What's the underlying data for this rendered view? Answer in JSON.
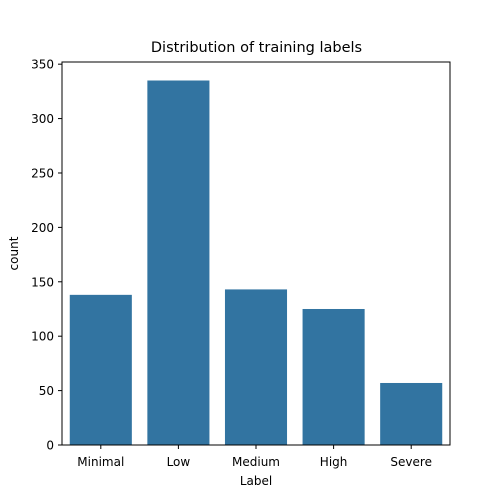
{
  "chart_data": {
    "type": "bar",
    "title": "Distribution of training labels",
    "xlabel": "Label",
    "ylabel": "count",
    "categories": [
      "Minimal",
      "Low",
      "Medium",
      "High",
      "Severe"
    ],
    "values": [
      138,
      335,
      143,
      125,
      57
    ],
    "ylim": [
      0,
      352
    ],
    "yticks": [
      0,
      50,
      100,
      150,
      200,
      250,
      300,
      350
    ],
    "grid": false,
    "legend": "none",
    "bar_color": "#3274a1"
  }
}
